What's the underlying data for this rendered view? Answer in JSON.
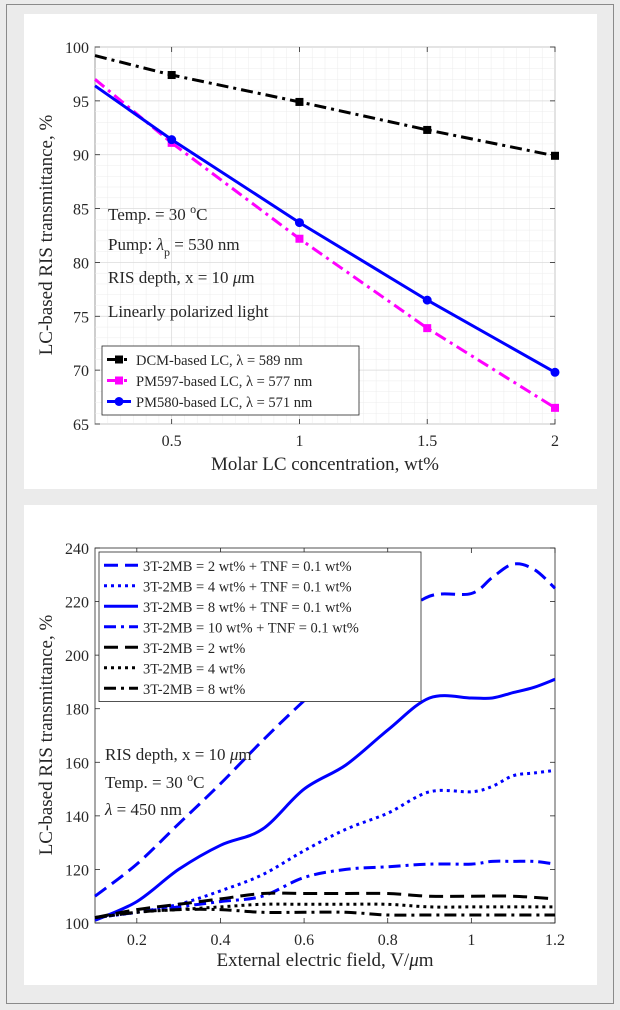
{
  "chart_data": [
    {
      "type": "line",
      "xlabel": "Molar LC concentration, wt%",
      "ylabel": "LC-based RIS transmittance, %",
      "xlim": [
        0.2,
        2
      ],
      "ylim": [
        65,
        100
      ],
      "xticks": [
        0.5,
        1,
        1.5,
        2
      ],
      "xtick_labels": [
        "0.5",
        "1",
        "1.5",
        "2"
      ],
      "yticks": [
        65,
        70,
        75,
        80,
        85,
        90,
        95,
        100
      ],
      "ytick_labels": [
        "65",
        "70",
        "75",
        "80",
        "85",
        "90",
        "95",
        "100"
      ],
      "grid": true,
      "legend_position": "bottom-left",
      "annotations": [
        "Temp. = 30 °C",
        "Pump: λp = 530 nm",
        "RIS depth, x = 10 μm",
        "Linearly polarized light"
      ],
      "series": [
        {
          "name": "DCM-based LC, λ = 589 nm",
          "color": "#000000",
          "dash": "dashdot",
          "marker": "square",
          "x": [
            0.2,
            0.5,
            1,
            1.5,
            2
          ],
          "y": [
            99.2,
            97.4,
            94.9,
            92.3,
            89.9
          ]
        },
        {
          "name": "PM597-based LC, λ = 577 nm",
          "color": "#ff00ff",
          "dash": "dashdot",
          "marker": "square",
          "x": [
            0.2,
            0.5,
            1,
            1.5,
            2
          ],
          "y": [
            97.0,
            91.1,
            82.2,
            73.9,
            66.5
          ]
        },
        {
          "name": "PM580-based LC, λ = 571 nm",
          "color": "#0000ff",
          "dash": "solid",
          "marker": "circle",
          "x": [
            0.2,
            0.5,
            1,
            1.5,
            2
          ],
          "y": [
            96.4,
            91.4,
            83.7,
            76.5,
            69.8
          ]
        }
      ]
    },
    {
      "type": "line",
      "xlabel": "External electric field, V/μm",
      "ylabel": "LC-based RIS transmittance, %",
      "xlim": [
        0.1,
        1.2
      ],
      "ylim": [
        100,
        240
      ],
      "xticks": [
        0.2,
        0.4,
        0.6,
        0.8,
        1,
        1.2
      ],
      "xtick_labels": [
        "0.2",
        "0.4",
        "0.6",
        "0.8",
        "1",
        "1.2"
      ],
      "yticks": [
        100,
        120,
        140,
        160,
        180,
        200,
        220,
        240
      ],
      "ytick_labels": [
        "100",
        "120",
        "140",
        "160",
        "180",
        "200",
        "220",
        "240"
      ],
      "grid": false,
      "legend_position": "top-left",
      "annotations": [
        "RIS depth, x = 10 μm",
        "Temp. = 30 °C",
        "λ = 450 nm"
      ],
      "series": [
        {
          "name": "3T-2MB = 2 wt% + TNF = 0.1 wt%",
          "color": "#0000ff",
          "dash": "dash",
          "x": [
            0.1,
            0.2,
            0.3,
            0.4,
            0.5,
            0.6,
            0.7,
            0.8,
            0.9,
            1.0,
            1.05,
            1.1,
            1.15,
            1.2
          ],
          "y": [
            110,
            122,
            137,
            152,
            168,
            183,
            197,
            211,
            222,
            223,
            229,
            234,
            232,
            225
          ]
        },
        {
          "name": "3T-2MB = 4 wt% + TNF = 0.1 wt%",
          "color": "#0000ff",
          "dash": "dot",
          "x": [
            0.1,
            0.2,
            0.3,
            0.4,
            0.5,
            0.6,
            0.7,
            0.8,
            0.9,
            1.0,
            1.05,
            1.1,
            1.15,
            1.2
          ],
          "y": [
            102,
            104,
            107,
            112,
            118,
            127,
            135,
            141,
            149,
            149,
            151,
            155,
            156,
            157
          ]
        },
        {
          "name": "3T-2MB = 8 wt% + TNF = 0.1 wt%",
          "color": "#0000ff",
          "dash": "solid",
          "x": [
            0.1,
            0.2,
            0.3,
            0.4,
            0.5,
            0.6,
            0.7,
            0.8,
            0.9,
            1.0,
            1.05,
            1.1,
            1.15,
            1.2
          ],
          "y": [
            101,
            108,
            120,
            129,
            135,
            150,
            159,
            172,
            184,
            184,
            184,
            186,
            188,
            191
          ]
        },
        {
          "name": "3T-2MB = 10 wt% + TNF = 0.1 wt%",
          "color": "#0000ff",
          "dash": "dashdot",
          "x": [
            0.1,
            0.2,
            0.3,
            0.4,
            0.5,
            0.6,
            0.7,
            0.8,
            0.9,
            1.0,
            1.05,
            1.1,
            1.15,
            1.2
          ],
          "y": [
            102,
            104,
            106,
            108,
            110,
            117,
            120,
            121,
            122,
            122,
            123,
            123,
            123,
            122
          ]
        },
        {
          "name": "3T-2MB = 2 wt%",
          "color": "#000000",
          "dash": "dash",
          "x": [
            0.1,
            0.2,
            0.3,
            0.4,
            0.5,
            0.6,
            0.7,
            0.8,
            0.9,
            1.0,
            1.1,
            1.2
          ],
          "y": [
            102,
            105,
            107,
            109,
            111,
            111,
            111,
            111,
            110,
            110,
            110,
            109
          ]
        },
        {
          "name": "3T-2MB = 4 wt%",
          "color": "#000000",
          "dash": "dot",
          "x": [
            0.1,
            0.2,
            0.3,
            0.4,
            0.5,
            0.6,
            0.7,
            0.8,
            0.9,
            1.0,
            1.1,
            1.2
          ],
          "y": [
            102,
            104,
            105,
            106,
            107,
            107,
            107,
            107,
            106,
            106,
            106,
            106
          ]
        },
        {
          "name": "3T-2MB = 8 wt%",
          "color": "#000000",
          "dash": "dashdot",
          "x": [
            0.1,
            0.2,
            0.3,
            0.4,
            0.5,
            0.6,
            0.7,
            0.8,
            0.9,
            1.0,
            1.1,
            1.2
          ],
          "y": [
            102,
            104,
            105,
            105,
            104,
            104,
            104,
            103,
            103,
            103,
            103,
            103
          ]
        }
      ]
    }
  ]
}
